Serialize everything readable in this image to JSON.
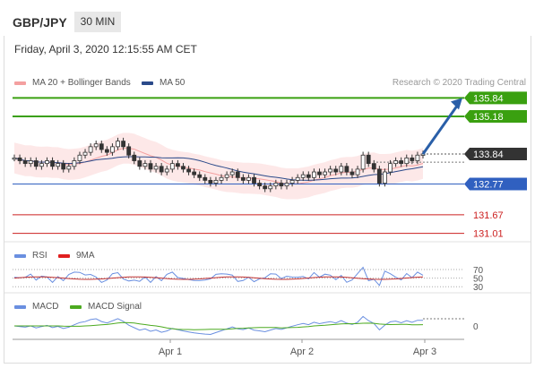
{
  "header": {
    "pair": "GBP/JPY",
    "timeframe": "30 MIN"
  },
  "datetime": "Friday, April 3, 2020 12:15:55 AM CET",
  "legend_main": [
    {
      "label": "MA 20 + Bollinger Bands",
      "color": "#f4a0a0"
    },
    {
      "label": "MA 50",
      "color": "#2b4a8a"
    }
  ],
  "credit": "Research © 2020 Trading Central",
  "legend_rsi": [
    {
      "label": "RSI",
      "color": "#6a8fe0"
    },
    {
      "label": "9MA",
      "color": "#e02020"
    }
  ],
  "legend_macd": [
    {
      "label": "MACD",
      "color": "#6a8fe0"
    },
    {
      "label": "MACD Signal",
      "color": "#4caa20"
    }
  ],
  "colors": {
    "green": "#3aa010",
    "blue": "#3060c0",
    "red": "#e04040",
    "arrow": "#2a5fa8",
    "current": "#333333"
  },
  "chart_data": {
    "type": "candlestick",
    "price_range": [
      130.8,
      136.4
    ],
    "levels": [
      {
        "value": 135.84,
        "label": "135.84",
        "color": "#3aa010",
        "kind": "resistance"
      },
      {
        "value": 135.18,
        "label": "135.18",
        "color": "#3aa010",
        "kind": "resistance"
      },
      {
        "value": 133.84,
        "label": "133.84",
        "color": "#333333",
        "kind": "current"
      },
      {
        "value": 132.77,
        "label": "132.77",
        "color": "#3060c0",
        "kind": "pivot"
      },
      {
        "value": 131.67,
        "label": "131.67",
        "color": "#cc2020",
        "kind": "support"
      },
      {
        "value": 131.01,
        "label": "131.01",
        "color": "#cc2020",
        "kind": "support"
      }
    ],
    "close_series": [
      133.7,
      133.6,
      133.5,
      133.6,
      133.4,
      133.5,
      133.6,
      133.4,
      133.5,
      133.3,
      133.4,
      133.6,
      133.8,
      133.9,
      134.1,
      134.2,
      134.0,
      133.9,
      134.1,
      134.3,
      134.1,
      133.8,
      133.6,
      133.4,
      133.5,
      133.3,
      133.4,
      133.2,
      133.3,
      133.5,
      133.4,
      133.3,
      133.2,
      133.1,
      133.0,
      132.9,
      132.8,
      132.9,
      133.0,
      133.1,
      133.2,
      133.0,
      132.9,
      133.0,
      132.8,
      132.7,
      132.6,
      132.7,
      132.8,
      132.7,
      132.8,
      132.9,
      133.0,
      133.1,
      133.0,
      133.2,
      133.1,
      133.2,
      133.3,
      133.2,
      133.4,
      133.2,
      133.1,
      133.3,
      133.8,
      133.5,
      133.3,
      132.8,
      133.2,
      133.5,
      133.6,
      133.5,
      133.7,
      133.6,
      133.8,
      133.84
    ],
    "arrow": {
      "from": 133.84,
      "to": 135.84
    },
    "x_labels": [
      "Apr 1",
      "Apr 2",
      "Apr 3"
    ],
    "rsi": {
      "ticks": [
        "70",
        "50",
        "30"
      ]
    },
    "macd": {
      "ticks": [
        "0"
      ]
    }
  }
}
